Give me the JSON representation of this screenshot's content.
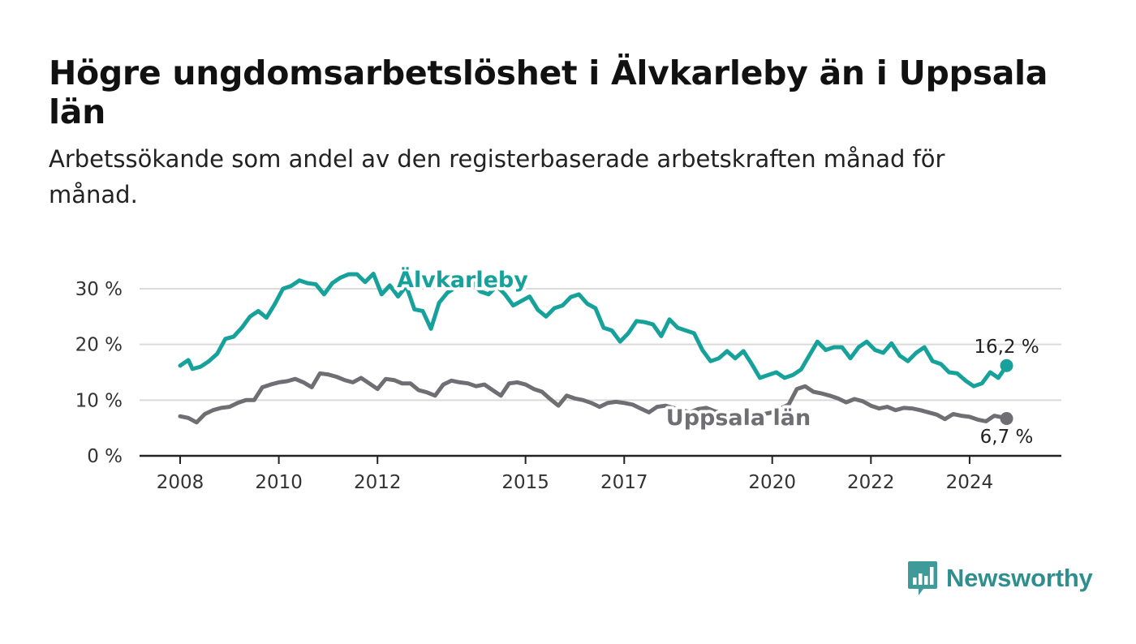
{
  "header": {
    "title": "Högre ungdomsarbetslöshet i Älvkarleby än i Uppsala län",
    "subtitle": "Arbetssökande som andel av den registerbaserade arbetskraften månad för månad."
  },
  "brand": {
    "name": "Newsworthy",
    "color": "#2f8f8f",
    "icon": "bar-chart-speech-bubble-icon"
  },
  "chart_data": {
    "type": "line",
    "y_ticks": [
      0,
      10,
      20,
      30
    ],
    "y_tick_suffix": " %",
    "ylim": [
      0,
      30
    ],
    "x_ticks": [
      "2008",
      "2010",
      "2012",
      "2015",
      "2017",
      "2020",
      "2022",
      "2024"
    ],
    "x_range": [
      "2008-01",
      "2024-10"
    ],
    "grid": "horizontal",
    "series": [
      {
        "name": "Älvkarleby",
        "color": "#16a29a",
        "end_label": "16,2 %",
        "points": [
          [
            "2008-01",
            16.2
          ],
          [
            "2008-03",
            17.2
          ],
          [
            "2008-04",
            15.6
          ],
          [
            "2008-06",
            16.0
          ],
          [
            "2008-08",
            17.0
          ],
          [
            "2008-10",
            18.3
          ],
          [
            "2008-12",
            21.0
          ],
          [
            "2009-02",
            21.4
          ],
          [
            "2009-04",
            23.0
          ],
          [
            "2009-06",
            25.0
          ],
          [
            "2009-08",
            26.0
          ],
          [
            "2009-10",
            24.8
          ],
          [
            "2009-12",
            27.2
          ],
          [
            "2010-02",
            30.0
          ],
          [
            "2010-04",
            30.5
          ],
          [
            "2010-06",
            31.5
          ],
          [
            "2010-08",
            31.0
          ],
          [
            "2010-10",
            30.8
          ],
          [
            "2010-12",
            29.0
          ],
          [
            "2011-02",
            31.0
          ],
          [
            "2011-04",
            32.0
          ],
          [
            "2011-06",
            32.6
          ],
          [
            "2011-08",
            32.6
          ],
          [
            "2011-10",
            31.2
          ],
          [
            "2011-12",
            32.7
          ],
          [
            "2012-02",
            29.0
          ],
          [
            "2012-04",
            30.6
          ],
          [
            "2012-06",
            28.6
          ],
          [
            "2012-08",
            30.5
          ],
          [
            "2012-10",
            26.3
          ],
          [
            "2012-12",
            26.0
          ],
          [
            "2013-02",
            22.8
          ],
          [
            "2013-04",
            27.5
          ],
          [
            "2013-06",
            29.3
          ],
          [
            "2013-08",
            30.2
          ],
          [
            "2013-10",
            31.0
          ],
          [
            "2013-12",
            31.2
          ],
          [
            "2014-02",
            29.5
          ],
          [
            "2014-04",
            29.0
          ],
          [
            "2014-06",
            30.5
          ],
          [
            "2014-08",
            29.0
          ],
          [
            "2014-10",
            27.0
          ],
          [
            "2014-12",
            27.8
          ],
          [
            "2015-02",
            28.6
          ],
          [
            "2015-04",
            26.2
          ],
          [
            "2015-06",
            25.0
          ],
          [
            "2015-08",
            26.5
          ],
          [
            "2015-10",
            27.0
          ],
          [
            "2015-12",
            28.5
          ],
          [
            "2016-02",
            29.0
          ],
          [
            "2016-04",
            27.3
          ],
          [
            "2016-06",
            26.5
          ],
          [
            "2016-08",
            23.0
          ],
          [
            "2016-10",
            22.5
          ],
          [
            "2016-12",
            20.5
          ],
          [
            "2017-02",
            22.0
          ],
          [
            "2017-04",
            24.2
          ],
          [
            "2017-06",
            24.0
          ],
          [
            "2017-08",
            23.6
          ],
          [
            "2017-10",
            21.5
          ],
          [
            "2017-12",
            24.5
          ],
          [
            "2018-02",
            23.0
          ],
          [
            "2018-04",
            22.5
          ],
          [
            "2018-06",
            22.0
          ],
          [
            "2018-08",
            19.0
          ],
          [
            "2018-10",
            17.0
          ],
          [
            "2018-12",
            17.5
          ],
          [
            "2019-02",
            18.8
          ],
          [
            "2019-04",
            17.5
          ],
          [
            "2019-06",
            18.8
          ],
          [
            "2019-08",
            16.5
          ],
          [
            "2019-10",
            14.0
          ],
          [
            "2019-12",
            14.5
          ],
          [
            "2020-02",
            15.0
          ],
          [
            "2020-04",
            14.0
          ],
          [
            "2020-06",
            14.5
          ],
          [
            "2020-08",
            15.5
          ],
          [
            "2020-10",
            18.0
          ],
          [
            "2020-12",
            20.5
          ],
          [
            "2021-02",
            19.0
          ],
          [
            "2021-04",
            19.5
          ],
          [
            "2021-06",
            19.5
          ],
          [
            "2021-08",
            17.5
          ],
          [
            "2021-10",
            19.5
          ],
          [
            "2021-12",
            20.5
          ],
          [
            "2022-02",
            19.0
          ],
          [
            "2022-04",
            18.5
          ],
          [
            "2022-06",
            20.2
          ],
          [
            "2022-08",
            18.0
          ],
          [
            "2022-10",
            17.0
          ],
          [
            "2022-12",
            18.5
          ],
          [
            "2023-02",
            19.5
          ],
          [
            "2023-04",
            17.0
          ],
          [
            "2023-06",
            16.5
          ],
          [
            "2023-08",
            15.0
          ],
          [
            "2023-10",
            14.8
          ],
          [
            "2023-12",
            13.5
          ],
          [
            "2024-02",
            12.5
          ],
          [
            "2024-04",
            13.0
          ],
          [
            "2024-06",
            15.0
          ],
          [
            "2024-08",
            14.0
          ],
          [
            "2024-10",
            16.2
          ]
        ]
      },
      {
        "name": "Uppsala län",
        "color": "#6e6e73",
        "end_label": "6,7 %",
        "points": [
          [
            "2008-01",
            7.1
          ],
          [
            "2008-03",
            6.8
          ],
          [
            "2008-05",
            6.0
          ],
          [
            "2008-07",
            7.5
          ],
          [
            "2008-09",
            8.2
          ],
          [
            "2008-11",
            8.6
          ],
          [
            "2009-01",
            8.8
          ],
          [
            "2009-03",
            9.5
          ],
          [
            "2009-05",
            10.0
          ],
          [
            "2009-07",
            10.0
          ],
          [
            "2009-09",
            12.3
          ],
          [
            "2009-11",
            12.8
          ],
          [
            "2010-01",
            13.2
          ],
          [
            "2010-03",
            13.4
          ],
          [
            "2010-05",
            13.8
          ],
          [
            "2010-07",
            13.2
          ],
          [
            "2010-09",
            12.3
          ],
          [
            "2010-11",
            14.8
          ],
          [
            "2011-01",
            14.6
          ],
          [
            "2011-03",
            14.2
          ],
          [
            "2011-05",
            13.6
          ],
          [
            "2011-07",
            13.2
          ],
          [
            "2011-09",
            14.0
          ],
          [
            "2011-11",
            13.0
          ],
          [
            "2012-01",
            12.0
          ],
          [
            "2012-03",
            13.8
          ],
          [
            "2012-05",
            13.6
          ],
          [
            "2012-07",
            13.0
          ],
          [
            "2012-09",
            13.0
          ],
          [
            "2012-11",
            11.8
          ],
          [
            "2013-01",
            11.4
          ],
          [
            "2013-03",
            10.8
          ],
          [
            "2013-05",
            12.8
          ],
          [
            "2013-07",
            13.5
          ],
          [
            "2013-09",
            13.2
          ],
          [
            "2013-11",
            13.0
          ],
          [
            "2014-01",
            12.5
          ],
          [
            "2014-03",
            12.8
          ],
          [
            "2014-05",
            11.8
          ],
          [
            "2014-07",
            10.8
          ],
          [
            "2014-09",
            13.0
          ],
          [
            "2014-11",
            13.2
          ],
          [
            "2015-01",
            12.8
          ],
          [
            "2015-03",
            12.0
          ],
          [
            "2015-05",
            11.5
          ],
          [
            "2015-07",
            10.2
          ],
          [
            "2015-09",
            9.0
          ],
          [
            "2015-11",
            10.8
          ],
          [
            "2016-01",
            10.3
          ],
          [
            "2016-03",
            10.0
          ],
          [
            "2016-05",
            9.5
          ],
          [
            "2016-07",
            8.8
          ],
          [
            "2016-09",
            9.5
          ],
          [
            "2016-11",
            9.7
          ],
          [
            "2017-01",
            9.5
          ],
          [
            "2017-03",
            9.2
          ],
          [
            "2017-05",
            8.5
          ],
          [
            "2017-07",
            7.8
          ],
          [
            "2017-09",
            8.8
          ],
          [
            "2017-11",
            9.0
          ],
          [
            "2018-01",
            8.6
          ],
          [
            "2018-03",
            8.2
          ],
          [
            "2018-05",
            7.8
          ],
          [
            "2018-07",
            8.4
          ],
          [
            "2018-09",
            8.6
          ],
          [
            "2018-11",
            8.0
          ],
          [
            "2019-01",
            7.6
          ],
          [
            "2019-03",
            7.8
          ],
          [
            "2019-05",
            7.4
          ],
          [
            "2019-07",
            7.0
          ],
          [
            "2019-09",
            7.2
          ],
          [
            "2019-11",
            7.5
          ],
          [
            "2020-01",
            7.8
          ],
          [
            "2020-03",
            8.5
          ],
          [
            "2020-05",
            9.2
          ],
          [
            "2020-07",
            12.0
          ],
          [
            "2020-09",
            12.5
          ],
          [
            "2020-11",
            11.5
          ],
          [
            "2021-01",
            11.2
          ],
          [
            "2021-03",
            10.8
          ],
          [
            "2021-05",
            10.3
          ],
          [
            "2021-07",
            9.6
          ],
          [
            "2021-09",
            10.2
          ],
          [
            "2021-11",
            9.8
          ],
          [
            "2022-01",
            9.0
          ],
          [
            "2022-03",
            8.5
          ],
          [
            "2022-05",
            8.8
          ],
          [
            "2022-07",
            8.2
          ],
          [
            "2022-09",
            8.6
          ],
          [
            "2022-11",
            8.5
          ],
          [
            "2023-01",
            8.2
          ],
          [
            "2023-03",
            7.8
          ],
          [
            "2023-05",
            7.4
          ],
          [
            "2023-07",
            6.6
          ],
          [
            "2023-09",
            7.5
          ],
          [
            "2023-11",
            7.2
          ],
          [
            "2024-01",
            7.0
          ],
          [
            "2024-03",
            6.5
          ],
          [
            "2024-05",
            6.2
          ],
          [
            "2024-07",
            7.2
          ],
          [
            "2024-09",
            6.9
          ],
          [
            "2024-10",
            6.7
          ]
        ]
      }
    ]
  }
}
